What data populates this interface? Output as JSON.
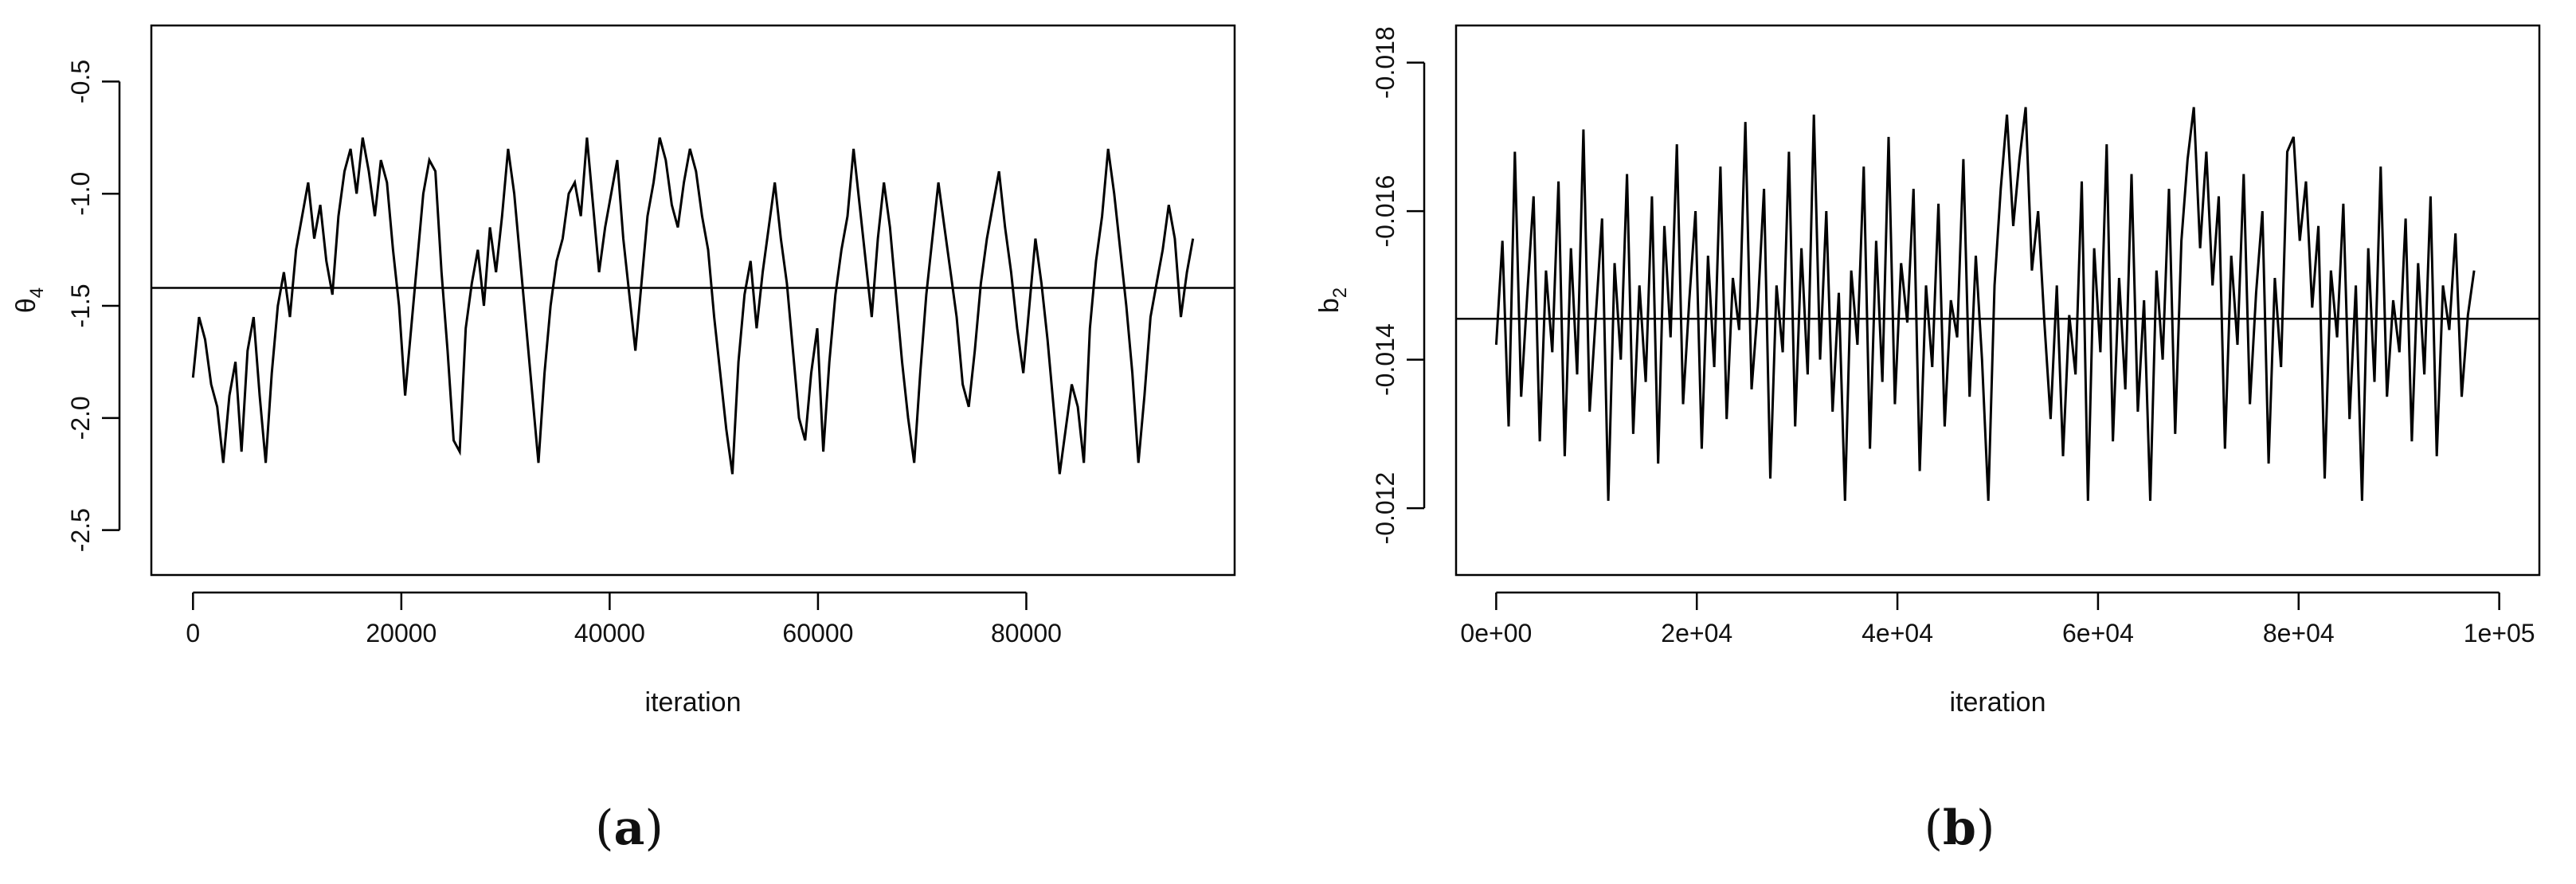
{
  "figure": {
    "panels": [
      {
        "label_open": "(",
        "label_letter": "a",
        "label_close": ")"
      },
      {
        "label_open": "(",
        "label_letter": "b",
        "label_close": ")"
      }
    ]
  },
  "chart_data": [
    {
      "type": "line",
      "title": "",
      "xlabel": "iteration",
      "ylabel_base": "θ",
      "ylabel_sub": "4",
      "xlim": [
        -4000,
        100000
      ],
      "ylim": [
        -2.7,
        -0.25
      ],
      "x_ticks": [
        0,
        20000,
        40000,
        60000,
        80000
      ],
      "x_tick_labels": [
        "0",
        "20000",
        "40000",
        "60000",
        "80000"
      ],
      "y_ticks": [
        -0.5,
        -1.0,
        -1.5,
        -2.0,
        -2.5
      ],
      "y_tick_labels": [
        "-0.5",
        "-1.0",
        "-1.5",
        "-2.0",
        "-2.5"
      ],
      "hline": -1.42,
      "grid": false,
      "series": [
        {
          "x_start": 0,
          "x_end": 96000,
          "line_color": "#000000",
          "values": [
            -1.82,
            -1.55,
            -1.65,
            -1.85,
            -1.95,
            -2.2,
            -1.9,
            -1.75,
            -2.15,
            -1.7,
            -1.55,
            -1.9,
            -2.2,
            -1.8,
            -1.5,
            -1.35,
            -1.55,
            -1.25,
            -1.1,
            -0.95,
            -1.2,
            -1.05,
            -1.3,
            -1.45,
            -1.1,
            -0.9,
            -0.8,
            -1.0,
            -0.75,
            -0.9,
            -1.1,
            -0.85,
            -0.95,
            -1.25,
            -1.5,
            -1.9,
            -1.6,
            -1.3,
            -1.0,
            -0.85,
            -0.9,
            -1.35,
            -1.7,
            -2.1,
            -2.15,
            -1.6,
            -1.4,
            -1.25,
            -1.5,
            -1.15,
            -1.35,
            -1.1,
            -0.8,
            -1.0,
            -1.3,
            -1.6,
            -1.9,
            -2.2,
            -1.8,
            -1.5,
            -1.3,
            -1.2,
            -1.0,
            -0.95,
            -1.1,
            -0.75,
            -1.05,
            -1.35,
            -1.15,
            -1.0,
            -0.85,
            -1.2,
            -1.45,
            -1.7,
            -1.4,
            -1.1,
            -0.95,
            -0.75,
            -0.85,
            -1.05,
            -1.15,
            -0.95,
            -0.8,
            -0.9,
            -1.1,
            -1.25,
            -1.55,
            -1.8,
            -2.05,
            -2.25,
            -1.75,
            -1.45,
            -1.3,
            -1.6,
            -1.35,
            -1.15,
            -0.95,
            -1.2,
            -1.4,
            -1.7,
            -2.0,
            -2.1,
            -1.8,
            -1.6,
            -2.15,
            -1.75,
            -1.45,
            -1.25,
            -1.1,
            -0.8,
            -1.05,
            -1.3,
            -1.55,
            -1.2,
            -0.95,
            -1.15,
            -1.45,
            -1.75,
            -2.0,
            -2.2,
            -1.8,
            -1.45,
            -1.2,
            -0.95,
            -1.15,
            -1.35,
            -1.55,
            -1.85,
            -1.95,
            -1.7,
            -1.4,
            -1.2,
            -1.05,
            -0.9,
            -1.15,
            -1.35,
            -1.6,
            -1.8,
            -1.5,
            -1.2,
            -1.4,
            -1.65,
            -1.95,
            -2.25,
            -2.05,
            -1.85,
            -1.95,
            -2.2,
            -1.6,
            -1.3,
            -1.1,
            -0.8,
            -1.0,
            -1.25,
            -1.5,
            -1.8,
            -2.2,
            -1.9,
            -1.55,
            -1.4,
            -1.25,
            -1.05,
            -1.2,
            -1.55,
            -1.35,
            -1.2
          ]
        }
      ]
    },
    {
      "type": "line",
      "title": "",
      "xlabel": "iteration",
      "ylabel_base": "b",
      "ylabel_sub": "2",
      "xlim": [
        -4000,
        104000
      ],
      "ylim": [
        -0.0111,
        -0.0185
      ],
      "x_ticks": [
        0,
        20000,
        40000,
        60000,
        80000,
        100000
      ],
      "x_tick_labels": [
        "0e+00",
        "2e+04",
        "4e+04",
        "6e+04",
        "8e+04",
        "1e+05"
      ],
      "y_ticks": [
        -0.018,
        -0.016,
        -0.014,
        -0.012
      ],
      "y_tick_labels": [
        "-0.018",
        "-0.016",
        "-0.014",
        "-0.012"
      ],
      "hline": -0.01455,
      "grid": false,
      "series": [
        {
          "x_start": 0,
          "x_end": 97500,
          "line_color": "#000000",
          "values": [
            -0.0142,
            -0.0156,
            -0.0131,
            -0.0168,
            -0.0135,
            -0.0149,
            -0.0162,
            -0.0129,
            -0.0152,
            -0.0141,
            -0.0164,
            -0.0127,
            -0.0155,
            -0.0138,
            -0.0171,
            -0.0133,
            -0.0146,
            -0.0159,
            -0.0121,
            -0.0153,
            -0.014,
            -0.0165,
            -0.013,
            -0.015,
            -0.0137,
            -0.0162,
            -0.0126,
            -0.0158,
            -0.0143,
            -0.0169,
            -0.0134,
            -0.0148,
            -0.016,
            -0.0128,
            -0.0154,
            -0.0139,
            -0.0166,
            -0.0132,
            -0.0151,
            -0.0144,
            -0.0172,
            -0.0136,
            -0.0147,
            -0.0163,
            -0.0124,
            -0.015,
            -0.0141,
            -0.0168,
            -0.0131,
            -0.0155,
            -0.0138,
            -0.0173,
            -0.014,
            -0.016,
            -0.0133,
            -0.0149,
            -0.0121,
            -0.0152,
            -0.0142,
            -0.0166,
            -0.0128,
            -0.0156,
            -0.0137,
            -0.017,
            -0.0134,
            -0.0153,
            -0.0145,
            -0.0163,
            -0.0125,
            -0.015,
            -0.0139,
            -0.0161,
            -0.0131,
            -0.0148,
            -0.0143,
            -0.0167,
            -0.0135,
            -0.0154,
            -0.014,
            -0.0121,
            -0.015,
            -0.0163,
            -0.0173,
            -0.0158,
            -0.0167,
            -0.0174,
            -0.0152,
            -0.016,
            -0.0145,
            -0.0132,
            -0.015,
            -0.0127,
            -0.0146,
            -0.0138,
            -0.0164,
            -0.0121,
            -0.0155,
            -0.0141,
            -0.0169,
            -0.0129,
            -0.0151,
            -0.0136,
            -0.0165,
            -0.0133,
            -0.0148,
            -0.0121,
            -0.0152,
            -0.014,
            -0.0163,
            -0.013,
            -0.0156,
            -0.0167,
            -0.0174,
            -0.0155,
            -0.0168,
            -0.015,
            -0.0162,
            -0.0128,
            -0.0154,
            -0.0142,
            -0.0165,
            -0.0134,
            -0.0149,
            -0.016,
            -0.0126,
            -0.0151,
            -0.0139,
            -0.0168,
            -0.017,
            -0.0156,
            -0.0164,
            -0.0147,
            -0.0158,
            -0.0124,
            -0.0152,
            -0.0143,
            -0.0161,
            -0.0132,
            -0.015,
            -0.0121,
            -0.0155,
            -0.0137,
            -0.0166,
            -0.0135,
            -0.0148,
            -0.0141,
            -0.0159,
            -0.0129,
            -0.0153,
            -0.0138,
            -0.0162,
            -0.0127,
            -0.015,
            -0.0144,
            -0.0157,
            -0.0135,
            -0.0146,
            -0.0152
          ]
        }
      ]
    }
  ]
}
